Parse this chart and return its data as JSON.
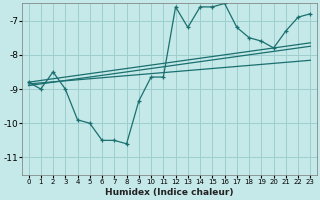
{
  "xlabel": "Humidex (Indice chaleur)",
  "bg_color": "#c5e8e8",
  "grid_color": "#9ecece",
  "line_color": "#1a7070",
  "xlim": [
    -0.5,
    23.5
  ],
  "ylim": [
    -11.5,
    -6.5
  ],
  "yticks": [
    -11,
    -10,
    -9,
    -8,
    -7
  ],
  "xticks": [
    0,
    1,
    2,
    3,
    4,
    5,
    6,
    7,
    8,
    9,
    10,
    11,
    12,
    13,
    14,
    15,
    16,
    17,
    18,
    19,
    20,
    21,
    22,
    23
  ],
  "series1_x": [
    0,
    1,
    2,
    3,
    4,
    5,
    6,
    7,
    8,
    9,
    10,
    11,
    12,
    13,
    14,
    15,
    16,
    17,
    18,
    19,
    20,
    21,
    22,
    23
  ],
  "series1_y": [
    -8.8,
    -9.0,
    -8.5,
    -9.0,
    -9.9,
    -10.0,
    -10.5,
    -10.5,
    -10.6,
    -9.35,
    -8.65,
    -8.65,
    -6.6,
    -7.2,
    -6.6,
    -6.6,
    -6.5,
    -7.2,
    -7.5,
    -7.6,
    -7.8,
    -7.3,
    -6.9,
    -6.8
  ],
  "series2_x": [
    0,
    1,
    2,
    3,
    4,
    5,
    6,
    7,
    8,
    9,
    10,
    11,
    12,
    13,
    14,
    15,
    16,
    17,
    18,
    19,
    20,
    21,
    22,
    23
  ],
  "series2_y": [
    -8.8,
    -8.75,
    -8.7,
    -8.65,
    -8.6,
    -8.55,
    -8.5,
    -8.45,
    -8.4,
    -8.35,
    -8.3,
    -8.25,
    -8.2,
    -8.15,
    -8.1,
    -8.05,
    -8.0,
    -7.95,
    -7.9,
    -7.85,
    -7.8,
    -7.75,
    -7.7,
    -7.65
  ],
  "series3_x": [
    0,
    1,
    2,
    3,
    4,
    5,
    6,
    7,
    8,
    9,
    10,
    11,
    12,
    13,
    14,
    15,
    16,
    17,
    18,
    19,
    20,
    21,
    22,
    23
  ],
  "series3_y": [
    -8.85,
    -8.82,
    -8.79,
    -8.76,
    -8.73,
    -8.7,
    -8.67,
    -8.64,
    -8.61,
    -8.58,
    -8.55,
    -8.52,
    -8.49,
    -8.46,
    -8.43,
    -8.4,
    -8.37,
    -8.34,
    -8.31,
    -8.28,
    -8.25,
    -8.22,
    -8.19,
    -8.16
  ],
  "series4_x": [
    0,
    23
  ],
  "series4_y": [
    -8.9,
    -7.75
  ]
}
